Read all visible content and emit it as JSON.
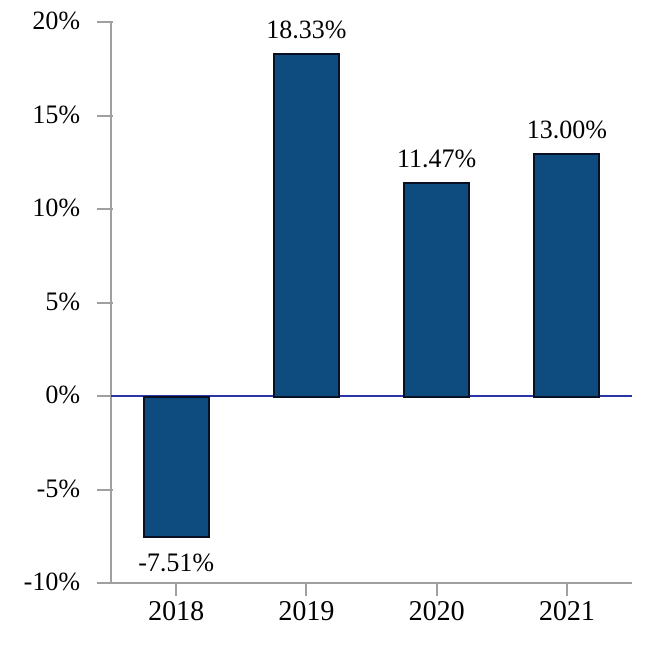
{
  "chart_data": {
    "type": "bar",
    "title": "",
    "xlabel": "",
    "ylabel": "",
    "categories": [
      "2018",
      "2019",
      "2020",
      "2021"
    ],
    "values": [
      -7.51,
      18.33,
      11.47,
      13.0
    ],
    "data_labels": [
      "-7.51%",
      "18.33%",
      "11.47%",
      "13.00%"
    ],
    "ylim": [
      -10,
      20
    ],
    "ytick_step": 5,
    "ytick_labels": [
      "20%",
      "15%",
      "10%",
      "5%",
      "0%",
      "-5%",
      "-10%"
    ],
    "grid": false,
    "legend": null,
    "zero_baseline": true,
    "colors": {
      "bar_fill": "#0E4C80",
      "bar_border": "#0A1024",
      "zero_line": "#2936A8",
      "axis": "#A0A0A0",
      "text": "#000000",
      "background": "#FFFFFF"
    }
  }
}
